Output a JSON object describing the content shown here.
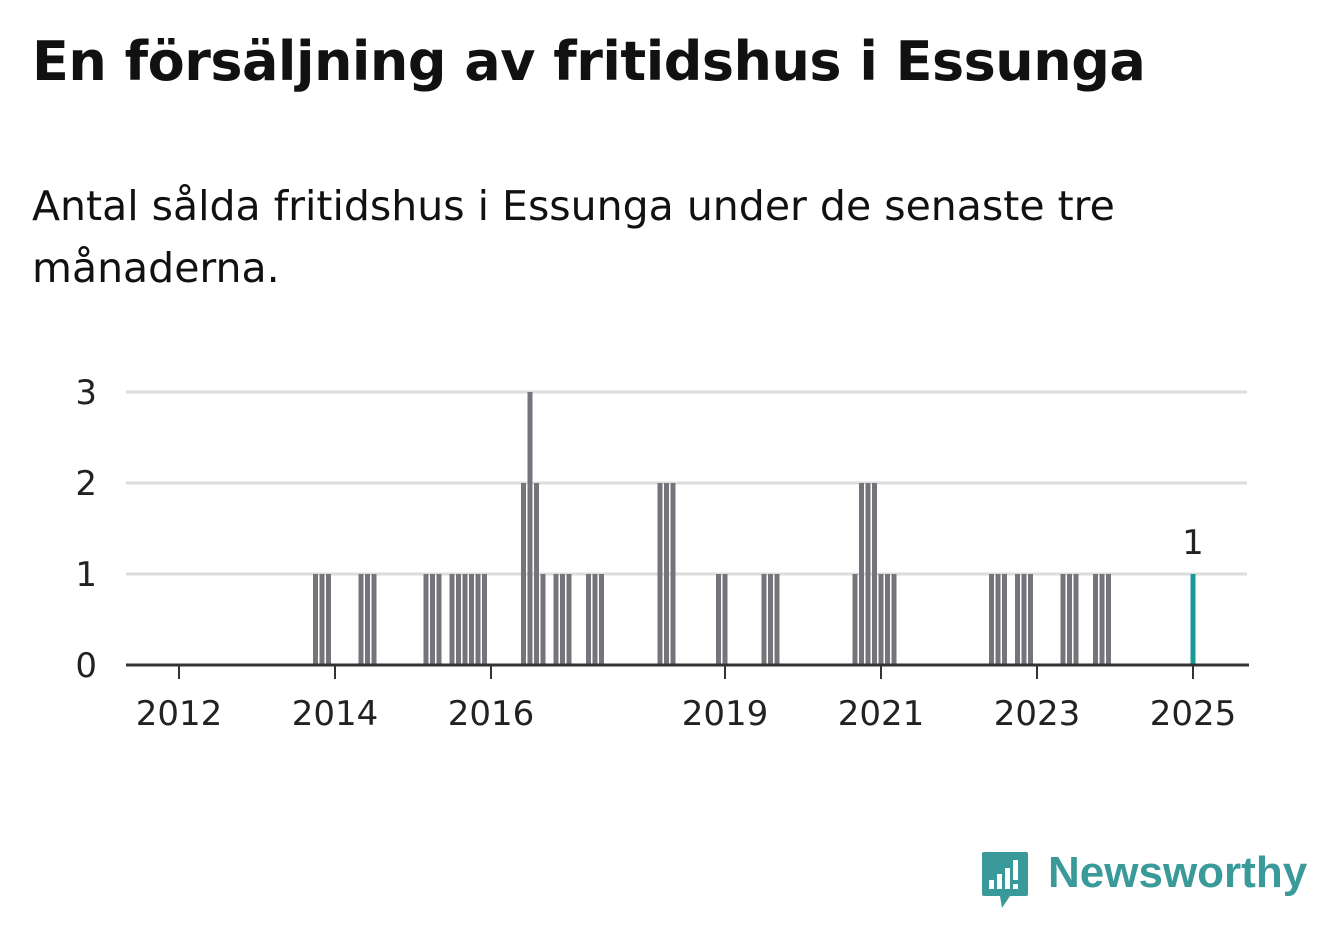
{
  "title": "En försäljning av fritidshus i Essunga",
  "subtitle": "Antal sålda fritidshus i Essunga under de senaste tre månaderna.",
  "brand": {
    "name": "Newsworthy",
    "icon": "newsworthy-logo-icon"
  },
  "colors": {
    "bar": "#75747a",
    "highlight": "#1a9a96",
    "grid": "#dcdcdc",
    "axis": "#333333"
  },
  "chart_data": {
    "type": "bar",
    "x_tick_labels": [
      "2012",
      "2014",
      "2016",
      "2019",
      "2021",
      "2023",
      "2025"
    ],
    "x_tick_dates": [
      "2012-01",
      "2014-01",
      "2016-01",
      "2019-01",
      "2021-01",
      "2023-01",
      "2025-01"
    ],
    "y_ticks": [
      0,
      1,
      2,
      3
    ],
    "ylim": [
      0,
      3
    ],
    "grid": true,
    "highlight_label": "1",
    "bars": [
      {
        "date": "2013-10",
        "value": 1
      },
      {
        "date": "2013-11",
        "value": 1
      },
      {
        "date": "2013-12",
        "value": 1
      },
      {
        "date": "2014-05",
        "value": 1
      },
      {
        "date": "2014-06",
        "value": 1
      },
      {
        "date": "2014-07",
        "value": 1
      },
      {
        "date": "2015-03",
        "value": 1
      },
      {
        "date": "2015-04",
        "value": 1
      },
      {
        "date": "2015-05",
        "value": 1
      },
      {
        "date": "2015-07",
        "value": 1
      },
      {
        "date": "2015-08",
        "value": 1
      },
      {
        "date": "2015-09",
        "value": 1
      },
      {
        "date": "2015-10",
        "value": 1
      },
      {
        "date": "2015-11",
        "value": 1
      },
      {
        "date": "2015-12",
        "value": 1
      },
      {
        "date": "2016-06",
        "value": 2
      },
      {
        "date": "2016-07",
        "value": 3
      },
      {
        "date": "2016-08",
        "value": 2
      },
      {
        "date": "2016-09",
        "value": 1
      },
      {
        "date": "2016-11",
        "value": 1
      },
      {
        "date": "2016-12",
        "value": 1
      },
      {
        "date": "2017-01",
        "value": 1
      },
      {
        "date": "2017-04",
        "value": 1
      },
      {
        "date": "2017-05",
        "value": 1
      },
      {
        "date": "2017-06",
        "value": 1
      },
      {
        "date": "2018-03",
        "value": 2
      },
      {
        "date": "2018-04",
        "value": 2
      },
      {
        "date": "2018-05",
        "value": 2
      },
      {
        "date": "2018-12",
        "value": 1
      },
      {
        "date": "2019-01",
        "value": 1
      },
      {
        "date": "2019-07",
        "value": 1
      },
      {
        "date": "2019-08",
        "value": 1
      },
      {
        "date": "2019-09",
        "value": 1
      },
      {
        "date": "2020-09",
        "value": 1
      },
      {
        "date": "2020-10",
        "value": 2
      },
      {
        "date": "2020-11",
        "value": 2
      },
      {
        "date": "2020-12",
        "value": 2
      },
      {
        "date": "2021-01",
        "value": 1
      },
      {
        "date": "2021-02",
        "value": 1
      },
      {
        "date": "2021-03",
        "value": 1
      },
      {
        "date": "2022-06",
        "value": 1
      },
      {
        "date": "2022-07",
        "value": 1
      },
      {
        "date": "2022-08",
        "value": 1
      },
      {
        "date": "2022-10",
        "value": 1
      },
      {
        "date": "2022-11",
        "value": 1
      },
      {
        "date": "2022-12",
        "value": 1
      },
      {
        "date": "2023-05",
        "value": 1
      },
      {
        "date": "2023-06",
        "value": 1
      },
      {
        "date": "2023-07",
        "value": 1
      },
      {
        "date": "2023-10",
        "value": 1
      },
      {
        "date": "2023-11",
        "value": 1
      },
      {
        "date": "2023-12",
        "value": 1
      },
      {
        "date": "2025-01",
        "value": 1,
        "highlight": true
      }
    ]
  }
}
